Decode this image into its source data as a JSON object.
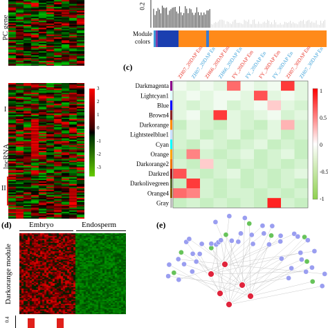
{
  "panels": {
    "b_label": "",
    "c_label": "(c)",
    "d_label": "(d)",
    "e_label": "(e)"
  },
  "heatmap_a": {
    "top_ylabel": "PC gene",
    "bottom_ylabel": "lncRNA",
    "cluster_I": "I",
    "cluster_II": "II",
    "colorbar_ticks": [
      "3",
      "2",
      "1",
      "0",
      "-1",
      "-2",
      "-3"
    ]
  },
  "dendrogram": {
    "ytick": "0.2",
    "module_label": "Module colors",
    "module_colors": [
      "#3a9ad9",
      "#7a3ea8",
      "#1b3fb0",
      "#ff8a1a",
      "#3a7ad0",
      "#ff8a1a"
    ]
  },
  "chart_data": {
    "type": "heatmap",
    "title": "",
    "columns": [
      "ZH07_20DAP Em",
      "ZH07_20DAP En",
      "ZH66_20DAP Em",
      "ZH66_20DAP En",
      "FY_20DAP Em",
      "FY_20DAP En",
      "FY_30DAP Em",
      "FY_30DAP En",
      "ZH07_30DAP Em",
      "ZH07_30DAP En"
    ],
    "rows": [
      "Darkmagenta",
      "Lightcyan1",
      "Blue",
      "Brown4",
      "Darkorange",
      "Lightsteelblue1",
      "Cyan",
      "Orange",
      "Darkorange2",
      "Darkred",
      "Darkolivegreen",
      "Orange4",
      "Gray"
    ],
    "row_colors": [
      "#8b008b",
      "#e0ffff",
      "#0000ff",
      "#8b2323",
      "#ff8c00",
      "#cae1ff",
      "#00ffff",
      "#ffa500",
      "#ee7600",
      "#8b0000",
      "#556b2f",
      "#8b5a00",
      "#bebebe"
    ],
    "values": [
      [
        -0.1,
        -0.2,
        -0.1,
        -0.2,
        0.6,
        -0.1,
        -0.2,
        -0.1,
        0.8,
        -0.2
      ],
      [
        -0.2,
        -0.1,
        -0.2,
        -0.1,
        -0.1,
        -0.2,
        0.7,
        -0.2,
        -0.1,
        -0.2
      ],
      [
        -0.2,
        -0.3,
        -0.2,
        -0.1,
        -0.3,
        -0.2,
        -0.1,
        0.2,
        -0.2,
        -0.3
      ],
      [
        -0.2,
        -0.1,
        -0.3,
        0.8,
        -0.2,
        -0.3,
        -0.2,
        -0.1,
        -0.3,
        -0.2
      ],
      [
        -0.4,
        -0.2,
        -0.3,
        -0.4,
        -0.2,
        -0.3,
        -0.4,
        -0.2,
        0.3,
        -0.3
      ],
      [
        -0.3,
        -0.2,
        -0.4,
        -0.3,
        -0.2,
        -0.4,
        -0.3,
        -0.2,
        -0.4,
        -0.3
      ],
      [
        -0.3,
        -0.4,
        -0.2,
        -0.3,
        -0.4,
        -0.3,
        -0.2,
        -0.4,
        -0.3,
        -0.4
      ],
      [
        -0.4,
        0.5,
        -0.3,
        -0.4,
        -0.3,
        -0.2,
        -0.4,
        -0.3,
        -0.2,
        -0.4
      ],
      [
        -0.3,
        -0.4,
        0.2,
        -0.3,
        -0.4,
        -0.3,
        -0.4,
        -0.3,
        -0.4,
        -0.3
      ],
      [
        0.7,
        -0.3,
        -0.4,
        -0.3,
        -0.2,
        -0.4,
        -0.3,
        -0.4,
        -0.3,
        -0.2
      ],
      [
        -0.4,
        0.8,
        -0.3,
        -0.4,
        -0.3,
        -0.4,
        -0.3,
        -0.4,
        -0.3,
        -0.4
      ],
      [
        0.6,
        0.5,
        -0.3,
        -0.4,
        -0.3,
        -0.3,
        -0.4,
        -0.3,
        -0.4,
        -0.3
      ],
      [
        -0.4,
        -0.3,
        -0.4,
        -0.3,
        -0.4,
        -0.3,
        -0.4,
        0.9,
        -0.3,
        -0.4
      ]
    ],
    "colorbar_ticks": [
      "1",
      "0.5",
      "0",
      "-0.5",
      "-1"
    ],
    "vlim": [
      -1,
      1
    ]
  },
  "heatmap_d": {
    "col_embryo": "Embryo",
    "col_endosperm": "Endosperm",
    "ylabel": "Darkorange module",
    "bottom_tick": "0.4"
  },
  "network": {
    "node_count_outer": 52,
    "hub_count": 6
  }
}
